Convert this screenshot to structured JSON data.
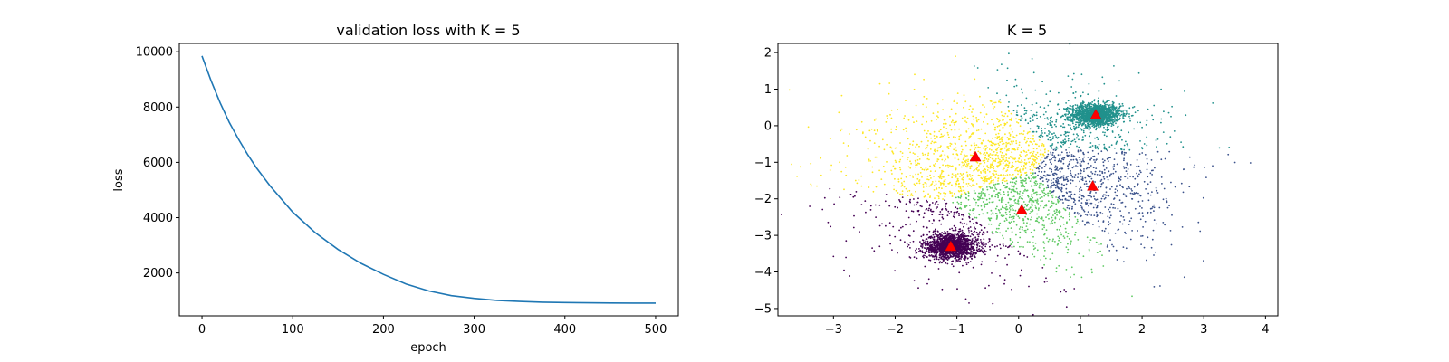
{
  "chart_data": [
    {
      "type": "line",
      "title": "validation loss with K = 5",
      "xlabel": "epoch",
      "ylabel": "loss",
      "xlim": [
        -25,
        525
      ],
      "ylim": [
        450,
        10300
      ],
      "xticks": [
        0,
        100,
        200,
        300,
        400,
        500
      ],
      "yticks": [
        2000,
        4000,
        6000,
        8000,
        10000
      ],
      "grid": false,
      "series": [
        {
          "color": "#1f77b4",
          "x": [
            0,
            10,
            20,
            30,
            40,
            50,
            60,
            75,
            100,
            125,
            150,
            175,
            200,
            225,
            250,
            275,
            300,
            325,
            350,
            375,
            400,
            425,
            450,
            475,
            500
          ],
          "y": [
            9850,
            8950,
            8150,
            7450,
            6850,
            6300,
            5800,
            5150,
            4200,
            3450,
            2850,
            2350,
            1950,
            1600,
            1350,
            1180,
            1080,
            1010,
            970,
            945,
            930,
            920,
            915,
            912,
            910
          ]
        }
      ]
    },
    {
      "type": "scatter",
      "title": "K = 5",
      "xlabel": "",
      "ylabel": "",
      "xlim": [
        -3.9,
        4.2
      ],
      "ylim": [
        -5.2,
        2.25
      ],
      "xticks": [
        -3,
        -2,
        -1,
        0,
        1,
        2,
        3,
        4
      ],
      "yticks": [
        -5,
        -4,
        -3,
        -2,
        -1,
        0,
        1,
        2
      ],
      "grid": false,
      "centroid_marker": "red-triangle",
      "centroids": [
        {
          "x": 1.25,
          "y": 0.3
        },
        {
          "x": -0.7,
          "y": -0.85
        },
        {
          "x": 1.2,
          "y": -1.65
        },
        {
          "x": 0.05,
          "y": -2.3
        },
        {
          "x": -1.1,
          "y": -3.3
        }
      ],
      "clusters": [
        {
          "color": "#21918c",
          "center": [
            1.25,
            0.3
          ],
          "points": 1500
        },
        {
          "color": "#fde725",
          "center": [
            -0.7,
            -0.85
          ],
          "points": 900
        },
        {
          "color": "#3b528b",
          "center": [
            1.2,
            -1.65
          ],
          "points": 700
        },
        {
          "color": "#5ec962",
          "center": [
            0.05,
            -2.3
          ],
          "points": 800
        },
        {
          "color": "#440154",
          "center": [
            -1.1,
            -3.3
          ],
          "points": 1500
        }
      ]
    }
  ]
}
